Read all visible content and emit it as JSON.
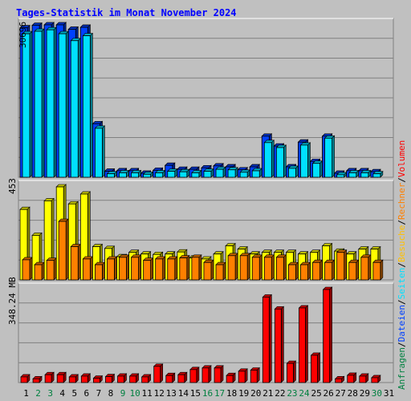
{
  "chart_data": [
    {
      "type": "bar",
      "panel": "top",
      "title": "Tages-Statistik im Monat November 2024",
      "y_max_label": "30696",
      "legend": [
        "Anfragen",
        "Dateien"
      ],
      "x": [
        "1",
        "2",
        "3",
        "4",
        "5",
        "6",
        "7",
        "8",
        "9",
        "10",
        "11",
        "12",
        "13",
        "14",
        "15",
        "16",
        "17",
        "18",
        "19",
        "20",
        "21",
        "22",
        "23",
        "24",
        "25",
        "26",
        "27",
        "28",
        "29",
        "30",
        "31"
      ],
      "weekend_days": [
        "2",
        "3",
        "9",
        "10",
        "16",
        "17",
        "23",
        "24",
        "30"
      ],
      "series": [
        {
          "name": "Anfragen",
          "color": "#008040",
          "values": [
            30200,
            30700,
            30800,
            30800,
            29900,
            30300,
            10800,
            1200,
            1300,
            1300,
            800,
            1400,
            2400,
            1600,
            1600,
            1900,
            2300,
            2100,
            1500,
            2100,
            8300,
            6300,
            2100,
            7100,
            3200,
            8300,
            800,
            1300,
            1300,
            1100,
            0
          ]
        },
        {
          "name": "Dateien",
          "color": "#0040ff",
          "values": [
            30200,
            30700,
            30800,
            30800,
            29900,
            30300,
            10800,
            1200,
            1300,
            1300,
            800,
            1400,
            2400,
            1600,
            1600,
            1900,
            2300,
            2100,
            1500,
            2100,
            8300,
            6300,
            2100,
            7100,
            3200,
            8300,
            800,
            1300,
            1300,
            1100,
            0
          ]
        },
        {
          "name": "Seiten",
          "color": "#00e0ff",
          "values": [
            29000,
            29500,
            29800,
            29000,
            27600,
            28600,
            9900,
            700,
            900,
            900,
            600,
            900,
            1200,
            1100,
            900,
            1200,
            1600,
            1500,
            1000,
            1300,
            7000,
            6000,
            1800,
            6500,
            2800,
            7900,
            500,
            900,
            900,
            700,
            0
          ]
        }
      ]
    },
    {
      "type": "bar",
      "panel": "middle",
      "y_max_label": "453",
      "legend": [
        "Seiten",
        "Besuche"
      ],
      "series": [
        {
          "name": "Seiten",
          "color": "#ffff00",
          "values": [
            343,
            217,
            385,
            453,
            370,
            418,
            162,
            153,
            113,
            134,
            126,
            124,
            126,
            136,
            107,
            102,
            126,
            166,
            150,
            126,
            134,
            134,
            134,
            126,
            134,
            166,
            140,
            126,
            150,
            150,
            0
          ]
        },
        {
          "name": "Besuche",
          "color": "#ff8000",
          "values": [
            98,
            74,
            95,
            285,
            162,
            102,
            74,
            102,
            110,
            110,
            95,
            102,
            102,
            107,
            110,
            85,
            74,
            118,
            118,
            110,
            110,
            110,
            74,
            74,
            85,
            85,
            134,
            85,
            110,
            85,
            0
          ]
        }
      ]
    },
    {
      "type": "bar",
      "panel": "bottom",
      "y_max_label": "348.24 MB",
      "legend": [
        "Volumen",
        "Rechner"
      ],
      "series": [
        {
          "name": "Volumen",
          "color": "#ff0000",
          "values": [
            21,
            14,
            29,
            29,
            21,
            24,
            16,
            22,
            24,
            24,
            21,
            60,
            26,
            29,
            48,
            54,
            54,
            26,
            42,
            46,
            316,
            272,
            71,
            276,
            101,
            344,
            14,
            27,
            24,
            18,
            0
          ]
        }
      ]
    }
  ],
  "right_axis_legend": [
    {
      "text": "Anfragen",
      "color": "#008040"
    },
    {
      "text": "/",
      "color": "#000000"
    },
    {
      "text": "Dateien",
      "color": "#0040ff"
    },
    {
      "text": "/",
      "color": "#000000"
    },
    {
      "text": "Seiten",
      "color": "#00e0ff"
    },
    {
      "text": "/",
      "color": "#000000"
    },
    {
      "text": "Besuche",
      "color": "#ffc000"
    },
    {
      "text": "/",
      "color": "#000000"
    },
    {
      "text": "Rechner",
      "color": "#ff8000"
    },
    {
      "text": "/",
      "color": "#000000"
    },
    {
      "text": "Volumen",
      "color": "#ff0000"
    }
  ],
  "colors": {
    "background": "#c0c0c0",
    "grid": "#808080",
    "title": "#0000ff",
    "weekend_label": "#008040",
    "weekday_label": "#000000"
  }
}
